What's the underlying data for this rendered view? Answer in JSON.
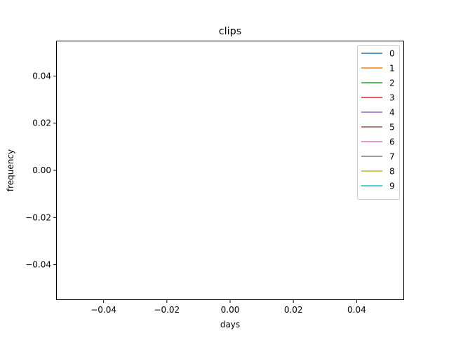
{
  "chart_data": {
    "type": "line",
    "title": "clips",
    "xlabel": "days",
    "ylabel": "frequency",
    "xlim": [
      -0.055,
      0.055
    ],
    "ylim": [
      -0.055,
      0.055
    ],
    "xticks": [
      -0.04,
      -0.02,
      0.0,
      0.02,
      0.04
    ],
    "xtick_labels": [
      "−0.04",
      "−0.02",
      "0.00",
      "0.02",
      "0.04"
    ],
    "yticks": [
      0.04,
      0.02,
      0.0,
      -0.02,
      -0.04
    ],
    "ytick_labels": [
      "0.04",
      "0.02",
      "0.00",
      "−0.02",
      "−0.04"
    ],
    "grid": false,
    "legend_position": "top-right",
    "series": [
      {
        "name": "0",
        "color": "#1f77b4",
        "x": [],
        "y": []
      },
      {
        "name": "1",
        "color": "#ff7f0e",
        "x": [],
        "y": []
      },
      {
        "name": "2",
        "color": "#2ca02c",
        "x": [],
        "y": []
      },
      {
        "name": "3",
        "color": "#d62728",
        "x": [],
        "y": []
      },
      {
        "name": "4",
        "color": "#9467bd",
        "x": [],
        "y": []
      },
      {
        "name": "5",
        "color": "#8c564b",
        "x": [],
        "y": []
      },
      {
        "name": "6",
        "color": "#e377c2",
        "x": [],
        "y": []
      },
      {
        "name": "7",
        "color": "#7f7f7f",
        "x": [],
        "y": []
      },
      {
        "name": "8",
        "color": "#bcbd22",
        "x": [],
        "y": []
      },
      {
        "name": "9",
        "color": "#17becf",
        "x": [],
        "y": []
      }
    ]
  }
}
